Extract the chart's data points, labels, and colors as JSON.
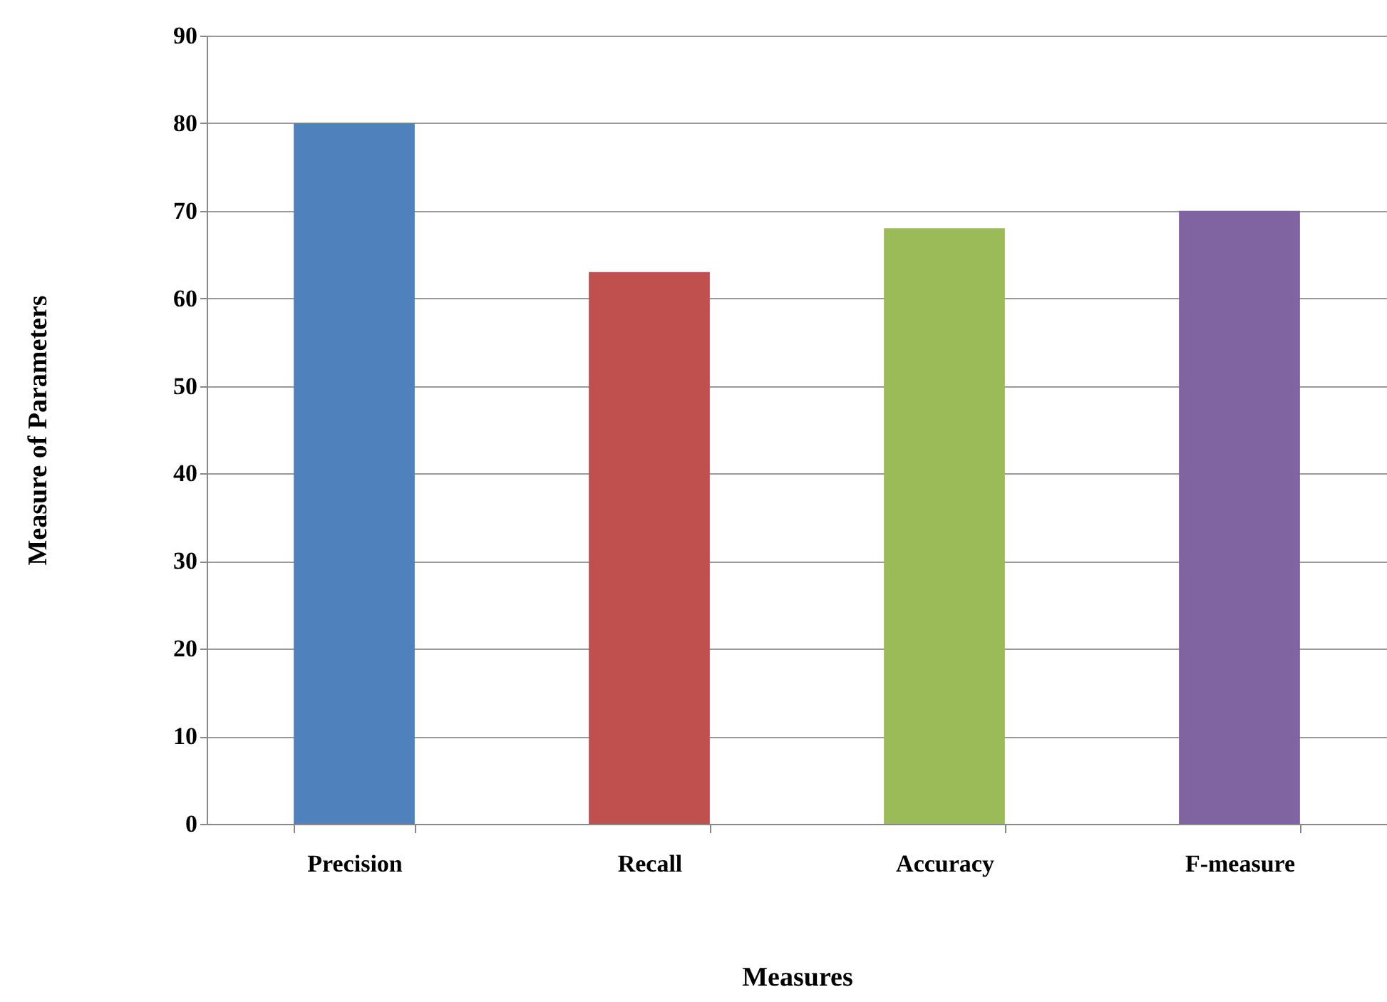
{
  "chart_data": {
    "type": "bar",
    "xlabel": "Measures",
    "ylabel": "Measure of Parameters",
    "categories": [
      "Precision",
      "Recall",
      "Accuracy",
      "F-measure"
    ],
    "values": [
      80,
      63,
      68,
      70
    ],
    "colors": [
      "#4f81bd",
      "#c0504d",
      "#9bbb59",
      "#8064a2"
    ],
    "ylim": [
      0,
      90
    ],
    "yticks": [
      0,
      10,
      20,
      30,
      40,
      50,
      60,
      70,
      80,
      90
    ],
    "grid": "y",
    "legend": false
  }
}
